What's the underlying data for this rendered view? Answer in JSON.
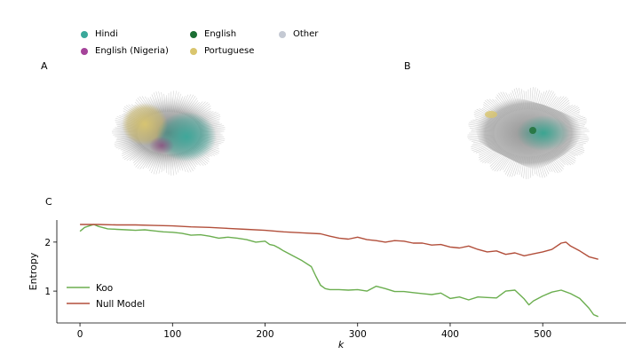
{
  "colors": {
    "background": "#ffffff",
    "hindi": "#3aa89a",
    "english_nigeria": "#a5449a",
    "english": "#1b6e33",
    "portuguese": "#d9c56e",
    "other": "#c4c9d3",
    "koo_line": "#6bae4f",
    "null_line": "#b24f3b"
  },
  "legend": [
    {
      "label": "Hindi",
      "color": "#3aa89a"
    },
    {
      "label": "English (Nigeria)",
      "color": "#a5449a"
    },
    {
      "label": "English",
      "color": "#1b6e33"
    },
    {
      "label": "Portuguese",
      "color": "#d9c56e"
    },
    {
      "label": "Other",
      "color": "#c4c9d3"
    }
  ],
  "panels": {
    "a": "A",
    "b": "B",
    "c": "C"
  },
  "chart_data": {
    "type": "line",
    "xlabel": "k",
    "ylabel": "Entropy",
    "xlim": [
      -25,
      590
    ],
    "ylim": [
      0.35,
      2.45
    ],
    "xticks": [
      "0",
      "100",
      "200",
      "300",
      "400",
      "500"
    ],
    "yticks": [
      "1",
      "2"
    ],
    "grid": false,
    "legend_position": "bottom-left",
    "series": [
      {
        "name": "Koo",
        "color": "#6bae4f",
        "x": [
          0,
          5,
          10,
          15,
          20,
          30,
          40,
          50,
          60,
          70,
          80,
          90,
          100,
          110,
          120,
          130,
          140,
          150,
          160,
          170,
          180,
          190,
          200,
          205,
          210,
          215,
          220,
          230,
          240,
          250,
          255,
          260,
          265,
          270,
          280,
          290,
          300,
          310,
          320,
          330,
          340,
          350,
          360,
          370,
          380,
          390,
          400,
          410,
          420,
          430,
          440,
          450,
          460,
          470,
          480,
          485,
          490,
          500,
          510,
          520,
          530,
          540,
          550,
          555,
          560
        ],
        "y": [
          2.22,
          2.3,
          2.33,
          2.36,
          2.32,
          2.27,
          2.26,
          2.25,
          2.24,
          2.25,
          2.23,
          2.21,
          2.2,
          2.18,
          2.14,
          2.15,
          2.12,
          2.08,
          2.1,
          2.08,
          2.05,
          2.0,
          2.02,
          1.95,
          1.93,
          1.88,
          1.82,
          1.72,
          1.62,
          1.5,
          1.3,
          1.12,
          1.05,
          1.03,
          1.03,
          1.02,
          1.03,
          1.0,
          1.1,
          1.05,
          0.99,
          0.99,
          0.97,
          0.95,
          0.93,
          0.96,
          0.85,
          0.88,
          0.82,
          0.88,
          0.87,
          0.86,
          1.0,
          1.02,
          0.84,
          0.72,
          0.8,
          0.9,
          0.98,
          1.02,
          0.95,
          0.85,
          0.65,
          0.52,
          0.48
        ]
      },
      {
        "name": "Null Model",
        "color": "#b24f3b",
        "x": [
          0,
          20,
          40,
          60,
          80,
          100,
          120,
          140,
          160,
          180,
          200,
          220,
          240,
          260,
          270,
          280,
          290,
          300,
          310,
          320,
          330,
          340,
          350,
          360,
          370,
          380,
          390,
          400,
          410,
          420,
          430,
          440,
          450,
          460,
          470,
          480,
          490,
          500,
          510,
          520,
          525,
          530,
          540,
          550,
          560
        ],
        "y": [
          2.36,
          2.36,
          2.35,
          2.35,
          2.34,
          2.33,
          2.31,
          2.3,
          2.28,
          2.26,
          2.24,
          2.21,
          2.19,
          2.17,
          2.12,
          2.08,
          2.06,
          2.1,
          2.05,
          2.03,
          2.0,
          2.03,
          2.02,
          1.98,
          1.98,
          1.94,
          1.95,
          1.9,
          1.88,
          1.92,
          1.85,
          1.8,
          1.82,
          1.75,
          1.78,
          1.72,
          1.76,
          1.8,
          1.85,
          1.98,
          2.0,
          1.92,
          1.82,
          1.7,
          1.65
        ]
      }
    ]
  }
}
